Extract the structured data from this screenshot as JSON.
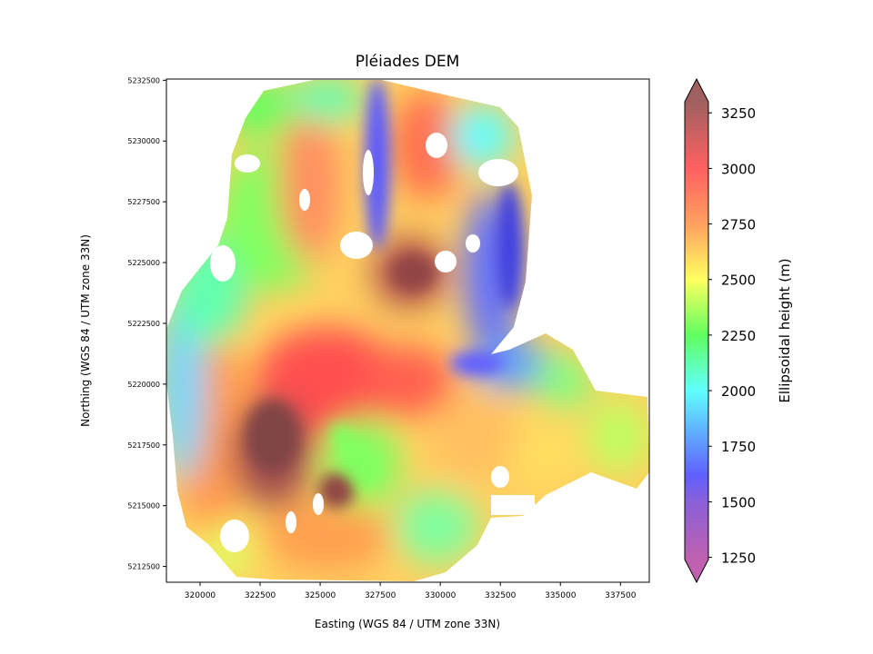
{
  "chart_data": {
    "type": "heatmap",
    "title": "Pléiades DEM",
    "xlabel": "Easting (WGS 84 / UTM zone 33N)",
    "ylabel": "Northing (WGS 84 / UTM zone 33N)",
    "xlim": [
      318600,
      338700
    ],
    "ylim": [
      5211850,
      5232550
    ],
    "xticks": [
      320000,
      322500,
      325000,
      327500,
      330000,
      332500,
      335000,
      337500
    ],
    "yticks": [
      5212500,
      5215000,
      5217500,
      5220000,
      5222500,
      5225000,
      5227500,
      5230000,
      5232500
    ],
    "colorbar": {
      "label": "Ellipsoidal height (m)",
      "range": [
        1240,
        3300
      ],
      "extend": "both",
      "ticks": [
        1250,
        1500,
        1750,
        2000,
        2250,
        2500,
        2750,
        3000,
        3250
      ],
      "colormap_stops": [
        {
          "value": 1240,
          "color": "#c060b0"
        },
        {
          "value": 1500,
          "color": "#8a60d8"
        },
        {
          "value": 1620,
          "color": "#6060ff"
        },
        {
          "value": 1800,
          "color": "#60a8ff"
        },
        {
          "value": 2000,
          "color": "#60ffff"
        },
        {
          "value": 2250,
          "color": "#60ff60"
        },
        {
          "value": 2500,
          "color": "#ffff60"
        },
        {
          "value": 2750,
          "color": "#ffa060"
        },
        {
          "value": 3000,
          "color": "#ff6060"
        },
        {
          "value": 3300,
          "color": "#a06060"
        }
      ]
    },
    "grid": false
  }
}
